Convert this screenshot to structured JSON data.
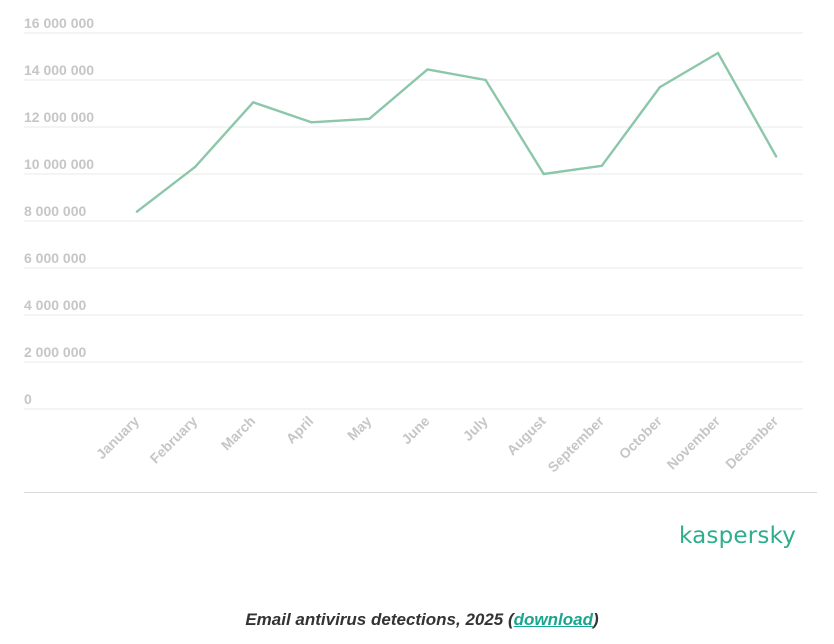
{
  "chart_data": {
    "type": "line",
    "categories": [
      "January",
      "February",
      "March",
      "April",
      "May",
      "June",
      "July",
      "August",
      "September",
      "October",
      "November",
      "December"
    ],
    "series": [
      {
        "values": [
          8400000,
          10300000,
          13050000,
          12200000,
          12350000,
          14450000,
          14000000,
          10000000,
          10350000,
          13700000,
          15150000,
          10750000
        ],
        "color": "#8cc7aa"
      }
    ],
    "yticks": [
      "0",
      "2 000 000",
      "4 000 000",
      "6 000 000",
      "8 000 000",
      "10 000 000",
      "12 000 000",
      "14 000 000",
      "16 000 000"
    ],
    "ytick_values": [
      0,
      2000000,
      4000000,
      6000000,
      8000000,
      10000000,
      12000000,
      14000000,
      16000000
    ],
    "ylim": [
      0,
      16000000
    ],
    "grid": true,
    "legend": "none"
  },
  "branding": {
    "logo_text": "kaspersky",
    "color": "#2eae8c"
  },
  "caption": {
    "prefix": "Email antivirus detections, 2025 (",
    "link_text": "download",
    "suffix": ")"
  }
}
